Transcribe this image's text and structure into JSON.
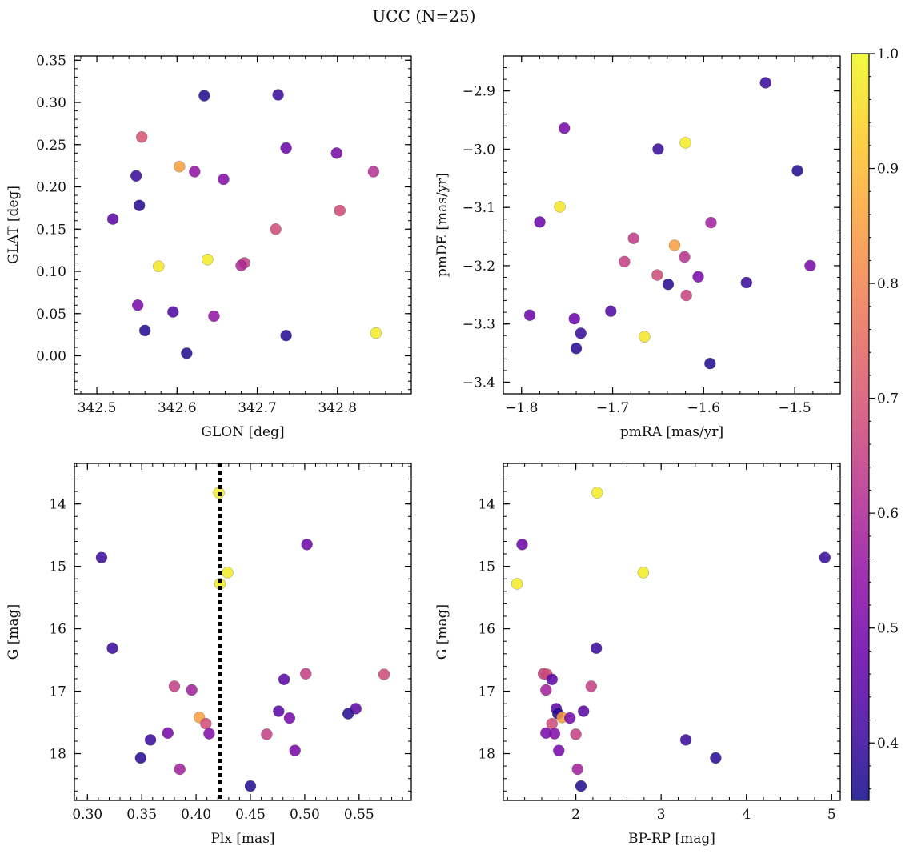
{
  "figure": {
    "title": "UCC (N=25)"
  },
  "colorbar": {
    "colormap": "plasma",
    "min": 0.35,
    "max": 1.0,
    "ticks": [
      "0.4",
      "0.5",
      "0.6",
      "0.7",
      "0.8",
      "0.9",
      "1.0"
    ]
  },
  "chart_data": [
    {
      "type": "scatter",
      "id": "glon-glat",
      "xlabel": "GLON [deg]",
      "ylabel": "GLAT [deg]",
      "xlim": [
        342.472,
        342.892
      ],
      "ylim": [
        -0.045,
        0.355
      ],
      "y_inverted": false,
      "xticks": [
        "342.5",
        "342.6",
        "342.7",
        "342.8"
      ],
      "yticks": [
        "0.00",
        "0.05",
        "0.10",
        "0.15",
        "0.20",
        "0.25",
        "0.30",
        "0.35"
      ],
      "points": [
        {
          "x": 342.634,
          "y": 0.308,
          "c": 0.37
        },
        {
          "x": 342.726,
          "y": 0.309,
          "c": 0.4
        },
        {
          "x": 342.556,
          "y": 0.259,
          "c": 0.7
        },
        {
          "x": 342.736,
          "y": 0.246,
          "c": 0.48
        },
        {
          "x": 342.799,
          "y": 0.24,
          "c": 0.5
        },
        {
          "x": 342.603,
          "y": 0.224,
          "c": 0.85
        },
        {
          "x": 342.622,
          "y": 0.218,
          "c": 0.55
        },
        {
          "x": 342.845,
          "y": 0.218,
          "c": 0.62
        },
        {
          "x": 342.549,
          "y": 0.213,
          "c": 0.4
        },
        {
          "x": 342.658,
          "y": 0.209,
          "c": 0.52
        },
        {
          "x": 342.553,
          "y": 0.178,
          "c": 0.38
        },
        {
          "x": 342.803,
          "y": 0.172,
          "c": 0.68
        },
        {
          "x": 342.52,
          "y": 0.162,
          "c": 0.45
        },
        {
          "x": 342.723,
          "y": 0.15,
          "c": 0.68
        },
        {
          "x": 342.638,
          "y": 0.114,
          "c": 0.98
        },
        {
          "x": 342.577,
          "y": 0.106,
          "c": 0.97
        },
        {
          "x": 342.684,
          "y": 0.11,
          "c": 0.65
        },
        {
          "x": 342.68,
          "y": 0.107,
          "c": 0.6
        },
        {
          "x": 342.551,
          "y": 0.06,
          "c": 0.5
        },
        {
          "x": 342.595,
          "y": 0.052,
          "c": 0.43
        },
        {
          "x": 342.646,
          "y": 0.047,
          "c": 0.55
        },
        {
          "x": 342.56,
          "y": 0.03,
          "c": 0.38
        },
        {
          "x": 342.736,
          "y": 0.024,
          "c": 0.38
        },
        {
          "x": 342.848,
          "y": 0.027,
          "c": 0.98
        },
        {
          "x": 342.612,
          "y": 0.003,
          "c": 0.37
        }
      ]
    },
    {
      "type": "scatter",
      "id": "pm",
      "xlabel": "pmRA [mas/yr]",
      "ylabel": "pmDE [mas/yr]",
      "xlim": [
        -1.82,
        -1.45
      ],
      "ylim": [
        -3.42,
        -2.84
      ],
      "y_inverted": false,
      "xticks": [
        "−1.8",
        "−1.7",
        "−1.6",
        "−1.5"
      ],
      "yticks": [
        "−3.4",
        "−3.3",
        "−3.2",
        "−3.1",
        "−3.0",
        "−2.9"
      ],
      "points": [
        {
          "x": -1.532,
          "y": -2.886,
          "c": 0.4
        },
        {
          "x": -1.753,
          "y": -2.964,
          "c": 0.5
        },
        {
          "x": -1.65,
          "y": -3.0,
          "c": 0.4
        },
        {
          "x": -1.62,
          "y": -2.989,
          "c": 0.98
        },
        {
          "x": -1.497,
          "y": -3.037,
          "c": 0.37
        },
        {
          "x": -1.758,
          "y": -3.099,
          "c": 0.97
        },
        {
          "x": -1.78,
          "y": -3.125,
          "c": 0.48
        },
        {
          "x": -1.592,
          "y": -3.126,
          "c": 0.58
        },
        {
          "x": -1.677,
          "y": -3.153,
          "c": 0.64
        },
        {
          "x": -1.632,
          "y": -3.165,
          "c": 0.85
        },
        {
          "x": -1.687,
          "y": -3.193,
          "c": 0.65
        },
        {
          "x": -1.621,
          "y": -3.185,
          "c": 0.62
        },
        {
          "x": -1.483,
          "y": -3.2,
          "c": 0.5
        },
        {
          "x": -1.651,
          "y": -3.216,
          "c": 0.68
        },
        {
          "x": -1.606,
          "y": -3.219,
          "c": 0.5
        },
        {
          "x": -1.639,
          "y": -3.232,
          "c": 0.38
        },
        {
          "x": -1.553,
          "y": -3.229,
          "c": 0.4
        },
        {
          "x": -1.619,
          "y": -3.251,
          "c": 0.66
        },
        {
          "x": -1.702,
          "y": -3.278,
          "c": 0.43
        },
        {
          "x": -1.791,
          "y": -3.285,
          "c": 0.48
        },
        {
          "x": -1.742,
          "y": -3.291,
          "c": 0.48
        },
        {
          "x": -1.735,
          "y": -3.316,
          "c": 0.4
        },
        {
          "x": -1.665,
          "y": -3.322,
          "c": 0.97
        },
        {
          "x": -1.74,
          "y": -3.342,
          "c": 0.38
        },
        {
          "x": -1.593,
          "y": -3.368,
          "c": 0.37
        }
      ]
    },
    {
      "type": "scatter",
      "id": "plx-g",
      "xlabel": "Plx [mas]",
      "ylabel": "G [mag]",
      "xlim": [
        0.288,
        0.598
      ],
      "ylim": [
        18.75,
        13.35
      ],
      "y_inverted": true,
      "xticks": [
        "0.30",
        "0.35",
        "0.40",
        "0.45",
        "0.50",
        "0.55"
      ],
      "yticks": [
        "14",
        "15",
        "16",
        "17",
        "18"
      ],
      "vline": 0.422,
      "points": [
        {
          "x": 0.421,
          "y": 13.82,
          "c": 0.98
        },
        {
          "x": 0.502,
          "y": 14.65,
          "c": 0.48
        },
        {
          "x": 0.313,
          "y": 14.86,
          "c": 0.4
        },
        {
          "x": 0.429,
          "y": 15.1,
          "c": 0.98
        },
        {
          "x": 0.422,
          "y": 15.28,
          "c": 0.98
        },
        {
          "x": 0.323,
          "y": 16.31,
          "c": 0.4
        },
        {
          "x": 0.501,
          "y": 16.72,
          "c": 0.65
        },
        {
          "x": 0.573,
          "y": 16.73,
          "c": 0.68
        },
        {
          "x": 0.481,
          "y": 16.81,
          "c": 0.45
        },
        {
          "x": 0.38,
          "y": 16.92,
          "c": 0.65
        },
        {
          "x": 0.396,
          "y": 16.98,
          "c": 0.58
        },
        {
          "x": 0.547,
          "y": 17.28,
          "c": 0.45
        },
        {
          "x": 0.476,
          "y": 17.32,
          "c": 0.45
        },
        {
          "x": 0.54,
          "y": 17.36,
          "c": 0.38
        },
        {
          "x": 0.403,
          "y": 17.42,
          "c": 0.85
        },
        {
          "x": 0.486,
          "y": 17.43,
          "c": 0.5
        },
        {
          "x": 0.409,
          "y": 17.52,
          "c": 0.68
        },
        {
          "x": 0.374,
          "y": 17.67,
          "c": 0.5
        },
        {
          "x": 0.412,
          "y": 17.68,
          "c": 0.52
        },
        {
          "x": 0.465,
          "y": 17.69,
          "c": 0.65
        },
        {
          "x": 0.358,
          "y": 17.78,
          "c": 0.4
        },
        {
          "x": 0.491,
          "y": 17.95,
          "c": 0.5
        },
        {
          "x": 0.349,
          "y": 18.07,
          "c": 0.38
        },
        {
          "x": 0.385,
          "y": 18.25,
          "c": 0.58
        },
        {
          "x": 0.45,
          "y": 18.52,
          "c": 0.37
        }
      ]
    },
    {
      "type": "scatter",
      "id": "cmd",
      "xlabel": "BP-RP [mag]",
      "ylabel": "G [mag]",
      "xlim": [
        1.15,
        5.1
      ],
      "ylim": [
        18.75,
        13.35
      ],
      "y_inverted": true,
      "xticks": [
        "2",
        "3",
        "4",
        "5"
      ],
      "yticks": [
        "14",
        "15",
        "16",
        "17",
        "18"
      ],
      "points": [
        {
          "x": 2.25,
          "y": 13.82,
          "c": 0.98
        },
        {
          "x": 1.37,
          "y": 14.65,
          "c": 0.48
        },
        {
          "x": 4.92,
          "y": 14.86,
          "c": 0.4
        },
        {
          "x": 2.79,
          "y": 15.1,
          "c": 0.98
        },
        {
          "x": 1.31,
          "y": 15.28,
          "c": 0.98
        },
        {
          "x": 2.24,
          "y": 16.31,
          "c": 0.4
        },
        {
          "x": 1.62,
          "y": 16.72,
          "c": 0.65
        },
        {
          "x": 1.66,
          "y": 16.73,
          "c": 0.68
        },
        {
          "x": 1.72,
          "y": 16.81,
          "c": 0.45
        },
        {
          "x": 2.18,
          "y": 16.92,
          "c": 0.65
        },
        {
          "x": 1.65,
          "y": 16.98,
          "c": 0.58
        },
        {
          "x": 1.77,
          "y": 17.28,
          "c": 0.45
        },
        {
          "x": 2.09,
          "y": 17.32,
          "c": 0.45
        },
        {
          "x": 1.79,
          "y": 17.36,
          "c": 0.38
        },
        {
          "x": 1.84,
          "y": 17.42,
          "c": 0.85
        },
        {
          "x": 1.93,
          "y": 17.43,
          "c": 0.5
        },
        {
          "x": 1.72,
          "y": 17.52,
          "c": 0.68
        },
        {
          "x": 1.65,
          "y": 17.67,
          "c": 0.5
        },
        {
          "x": 1.75,
          "y": 17.68,
          "c": 0.52
        },
        {
          "x": 2.0,
          "y": 17.69,
          "c": 0.65
        },
        {
          "x": 3.29,
          "y": 17.78,
          "c": 0.4
        },
        {
          "x": 1.8,
          "y": 17.95,
          "c": 0.5
        },
        {
          "x": 3.64,
          "y": 18.07,
          "c": 0.38
        },
        {
          "x": 2.02,
          "y": 18.25,
          "c": 0.58
        },
        {
          "x": 2.06,
          "y": 18.52,
          "c": 0.37
        }
      ]
    }
  ]
}
